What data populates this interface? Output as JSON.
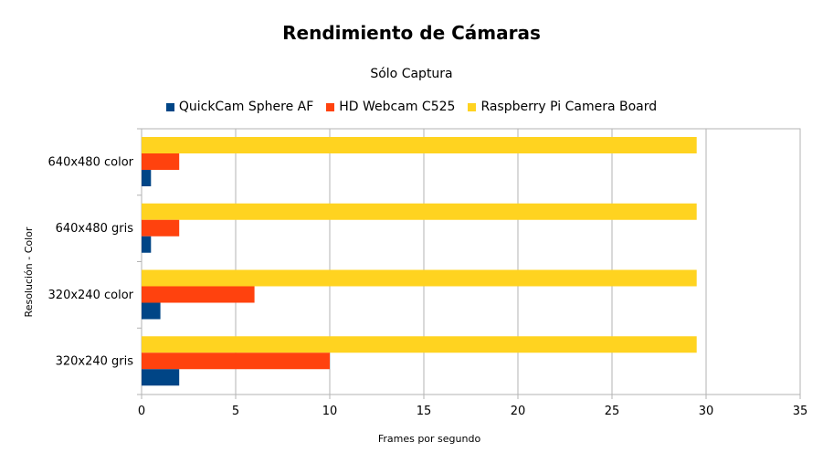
{
  "chart_data": {
    "type": "bar",
    "orientation": "horizontal",
    "title": "Rendimiento de Cámaras",
    "subtitle": "Sólo Captura",
    "xlabel": "Frames por segundo",
    "ylabel": "Resolución - Color",
    "xlim": [
      0,
      35
    ],
    "x_ticks": [
      0,
      5,
      10,
      15,
      20,
      25,
      30,
      35
    ],
    "categories": [
      "640x480 color",
      "640x480 gris",
      "320x240 color",
      "320x240 gris"
    ],
    "series": [
      {
        "name": "QuickCam Sphere AF",
        "color": "#004586",
        "values": [
          0.5,
          0.5,
          1,
          2
        ]
      },
      {
        "name": "HD Webcam C525",
        "color": "#ff420e",
        "values": [
          2,
          2,
          6,
          10
        ]
      },
      {
        "name": "Raspberry Pi Camera Board",
        "color": "#ffd320",
        "values": [
          29.5,
          29.5,
          29.5,
          29.5
        ]
      }
    ],
    "grid": true,
    "legend_position": "top"
  }
}
